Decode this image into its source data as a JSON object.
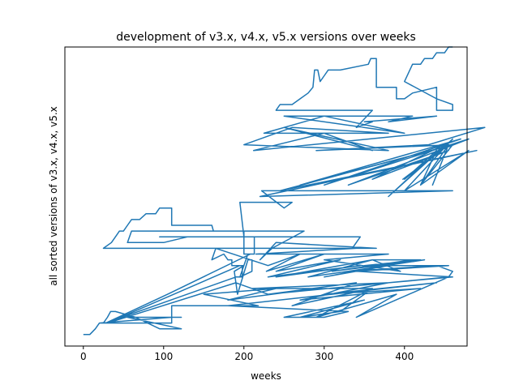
{
  "chart_data": {
    "type": "line",
    "title": "development of v3.x, v4.x, v5.x versions over weeks",
    "xlabel": "weeks",
    "ylabel": "all sorted versions of v3.x, v4.x, v5.x",
    "xlim": [
      -23,
      478
    ],
    "ylim": [
      -1,
      51
    ],
    "xticks": [
      0,
      100,
      200,
      300,
      400
    ],
    "yticks": [],
    "grid": false,
    "legend": "none",
    "series": [
      {
        "color": "#1f77b4",
        "points": [
          [
            0,
            1
          ],
          [
            8,
            1
          ],
          [
            15,
            2
          ],
          [
            20,
            3
          ],
          [
            25,
            3
          ],
          [
            30,
            4
          ],
          [
            34,
            5
          ],
          [
            40,
            5
          ],
          [
            65,
            4
          ],
          [
            95,
            2
          ],
          [
            122,
            2
          ],
          [
            55,
            4
          ],
          [
            122,
            4
          ],
          [
            110,
            4
          ],
          [
            20,
            3
          ],
          [
            110,
            3
          ],
          [
            110,
            6
          ],
          [
            218,
            6
          ],
          [
            150,
            8
          ],
          [
            240,
            9
          ],
          [
            180,
            7
          ],
          [
            290,
            9
          ],
          [
            230,
            8
          ],
          [
            340,
            10
          ],
          [
            260,
            6
          ],
          [
            360,
            9
          ],
          [
            210,
            9
          ],
          [
            380,
            10
          ],
          [
            270,
            7
          ],
          [
            420,
            9
          ],
          [
            300,
            8
          ],
          [
            440,
            10
          ],
          [
            180,
            6
          ],
          [
            330,
            5
          ],
          [
            300,
            4
          ],
          [
            250,
            4
          ],
          [
            350,
            7
          ],
          [
            270,
            4
          ],
          [
            320,
            5
          ],
          [
            360,
            9
          ],
          [
            290,
            4
          ],
          [
            390,
            8
          ],
          [
            340,
            4
          ],
          [
            455,
            11
          ],
          [
            230,
            8
          ],
          [
            190,
            10
          ],
          [
            30,
            3
          ],
          [
            195,
            13
          ],
          [
            200,
            13
          ],
          [
            188,
            12
          ],
          [
            192,
            8
          ],
          [
            205,
            14
          ],
          [
            210,
            14
          ],
          [
            210,
            12
          ],
          [
            195,
            11
          ],
          [
            205,
            15
          ],
          [
            208,
            15
          ],
          [
            105,
            8
          ],
          [
            28,
            3
          ],
          [
            190,
            11
          ],
          [
            198,
            11
          ],
          [
            198,
            13
          ],
          [
            185,
            13
          ],
          [
            185,
            14
          ],
          [
            180,
            14
          ],
          [
            175,
            15
          ],
          [
            160,
            14
          ],
          [
            165,
            16
          ],
          [
            230,
            13
          ],
          [
            270,
            15
          ],
          [
            228,
            12
          ],
          [
            300,
            15
          ],
          [
            240,
            12
          ],
          [
            320,
            14
          ],
          [
            230,
            11
          ],
          [
            345,
            13
          ],
          [
            240,
            11
          ],
          [
            360,
            14
          ],
          [
            280,
            11
          ],
          [
            380,
            13
          ],
          [
            300,
            11
          ],
          [
            410,
            14
          ],
          [
            310,
            12
          ],
          [
            425,
            14
          ],
          [
            330,
            12
          ],
          [
            440,
            13
          ],
          [
            460,
            12
          ],
          [
            455,
            11
          ],
          [
            380,
            10
          ],
          [
            460,
            11
          ],
          [
            340,
            12
          ],
          [
            455,
            13
          ],
          [
            350,
            13
          ],
          [
            420,
            14
          ],
          [
            360,
            14
          ],
          [
            395,
            12
          ],
          [
            300,
            14
          ],
          [
            380,
            15
          ],
          [
            215,
            15
          ],
          [
            340,
            16
          ],
          [
            225,
            16
          ],
          [
            25,
            16
          ],
          [
            35,
            17
          ],
          [
            40,
            18
          ],
          [
            45,
            19
          ],
          [
            50,
            19
          ],
          [
            55,
            20
          ],
          [
            60,
            21
          ],
          [
            70,
            21
          ],
          [
            78,
            22
          ],
          [
            90,
            22
          ],
          [
            95,
            23
          ],
          [
            110,
            23
          ],
          [
            110,
            20
          ],
          [
            160,
            20
          ],
          [
            162,
            19
          ],
          [
            200,
            19
          ],
          [
            200,
            15
          ],
          [
            213,
            15
          ],
          [
            213,
            18
          ],
          [
            345,
            18
          ],
          [
            335,
            16
          ],
          [
            365,
            16
          ],
          [
            240,
            17
          ],
          [
            220,
            14
          ],
          [
            235,
            16
          ],
          [
            275,
            19
          ],
          [
            60,
            19
          ],
          [
            55,
            17
          ],
          [
            100,
            17
          ],
          [
            130,
            18
          ],
          [
            280,
            18
          ],
          [
            95,
            18
          ],
          [
            200,
            18
          ],
          [
            195,
            24
          ],
          [
            260,
            24
          ],
          [
            250,
            23
          ],
          [
            222,
            26
          ],
          [
            460,
            26
          ],
          [
            220,
            25
          ],
          [
            490,
            33
          ],
          [
            245,
            26
          ],
          [
            460,
            34
          ],
          [
            270,
            27
          ],
          [
            470,
            35
          ],
          [
            300,
            27
          ],
          [
            480,
            35
          ],
          [
            330,
            27
          ],
          [
            455,
            33
          ],
          [
            360,
            28
          ],
          [
            450,
            34
          ],
          [
            380,
            25
          ],
          [
            460,
            35
          ],
          [
            400,
            26
          ],
          [
            480,
            33
          ],
          [
            420,
            27
          ],
          [
            455,
            34
          ],
          [
            398,
            28
          ],
          [
            455,
            34
          ],
          [
            435,
            27
          ],
          [
            455,
            34
          ],
          [
            400,
            28
          ],
          [
            440,
            33
          ],
          [
            420,
            27
          ],
          [
            460,
            34
          ],
          [
            290,
            33
          ],
          [
            430,
            34
          ],
          [
            500,
            37
          ],
          [
            212,
            33
          ],
          [
            300,
            36
          ],
          [
            360,
            33
          ],
          [
            250,
            37
          ],
          [
            380,
            33
          ],
          [
            200,
            34
          ],
          [
            260,
            37
          ],
          [
            380,
            36
          ],
          [
            225,
            36
          ],
          [
            300,
            39
          ],
          [
            400,
            36
          ],
          [
            250,
            39
          ],
          [
            410,
            39
          ],
          [
            380,
            38
          ],
          [
            440,
            39
          ],
          [
            350,
            38
          ],
          [
            360,
            38
          ],
          [
            340,
            37
          ],
          [
            360,
            40
          ],
          [
            350,
            40
          ],
          [
            240,
            40
          ],
          [
            245,
            41
          ],
          [
            260,
            41
          ],
          [
            270,
            42
          ],
          [
            280,
            43
          ],
          [
            286,
            44
          ],
          [
            288,
            47
          ],
          [
            292,
            47
          ],
          [
            295,
            45
          ],
          [
            300,
            46
          ],
          [
            305,
            47
          ],
          [
            320,
            47
          ],
          [
            355,
            48
          ],
          [
            358,
            49
          ],
          [
            365,
            49
          ],
          [
            365,
            44
          ],
          [
            390,
            44
          ],
          [
            390,
            42
          ],
          [
            400,
            42
          ],
          [
            410,
            43
          ],
          [
            440,
            44
          ],
          [
            440,
            40
          ],
          [
            460,
            40
          ],
          [
            460,
            41
          ],
          [
            440,
            42
          ],
          [
            400,
            45
          ],
          [
            410,
            48
          ],
          [
            420,
            48
          ],
          [
            425,
            49
          ],
          [
            435,
            49
          ],
          [
            440,
            50
          ],
          [
            450,
            50
          ],
          [
            455,
            51
          ],
          [
            460,
            51
          ]
        ]
      }
    ]
  }
}
